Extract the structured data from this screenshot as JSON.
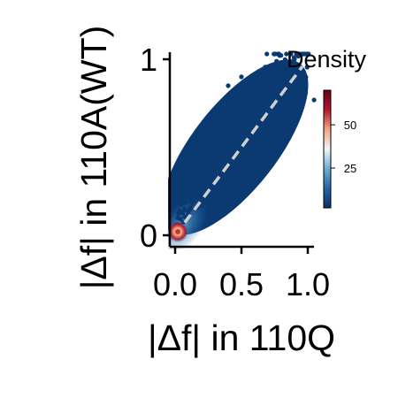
{
  "chart_data": {
    "type": "scatter",
    "xlabel": "|Δf| in 110Q",
    "ylabel": "|Δf| in 110A(WT)",
    "xlim": [
      -0.05,
      1.05
    ],
    "ylim": [
      -0.05,
      1.05
    ],
    "x_ticks": [
      {
        "value": 0,
        "label": "0.0"
      },
      {
        "value": 0.5,
        "label": "0.5"
      },
      {
        "value": 1,
        "label": "1.0"
      }
    ],
    "y_ticks": [
      {
        "value": 0,
        "label": "0"
      },
      {
        "value": 1,
        "label": "1"
      }
    ],
    "reference_line": {
      "style": "dashed",
      "color": "#d0d0d0",
      "from": [
        0,
        0
      ],
      "to": [
        1,
        1
      ]
    },
    "density_colorbar": {
      "title": "Density",
      "ticks": [
        {
          "value": 25,
          "label": "25"
        },
        {
          "value": 50,
          "label": "50"
        }
      ],
      "range": [
        2,
        70
      ],
      "colormap": [
        "#08306b",
        "#2166ac",
        "#6baed6",
        "#f5f5f5",
        "#f4a582",
        "#b2182b",
        "#67001f"
      ]
    },
    "point_color_low": "#0b3a73",
    "point_color_peak": "#c0392b",
    "sample_points": [
      [
        0.0,
        0.0
      ],
      [
        0.02,
        0.04
      ],
      [
        0.05,
        0.03
      ],
      [
        0.1,
        0.12
      ],
      [
        0.15,
        0.2
      ],
      [
        0.2,
        0.3
      ],
      [
        0.25,
        0.35
      ],
      [
        0.3,
        0.4
      ],
      [
        0.35,
        0.5
      ],
      [
        0.4,
        0.55
      ],
      [
        0.45,
        0.6
      ],
      [
        0.5,
        0.65
      ],
      [
        0.55,
        0.7
      ],
      [
        0.6,
        0.72
      ],
      [
        0.65,
        0.78
      ],
      [
        0.7,
        0.82
      ],
      [
        0.75,
        0.88
      ],
      [
        0.8,
        0.93
      ],
      [
        0.4,
        0.85
      ],
      [
        0.3,
        0.7
      ],
      [
        0.6,
        0.4
      ],
      [
        0.7,
        0.5
      ],
      [
        0.9,
        1.0
      ],
      [
        0.95,
        0.8
      ],
      [
        0.85,
        0.7
      ],
      [
        0.4,
        0.2
      ],
      [
        0.55,
        0.3
      ],
      [
        0.2,
        0.6
      ],
      [
        0.1,
        0.4
      ],
      [
        0.5,
        0.9
      ]
    ]
  }
}
